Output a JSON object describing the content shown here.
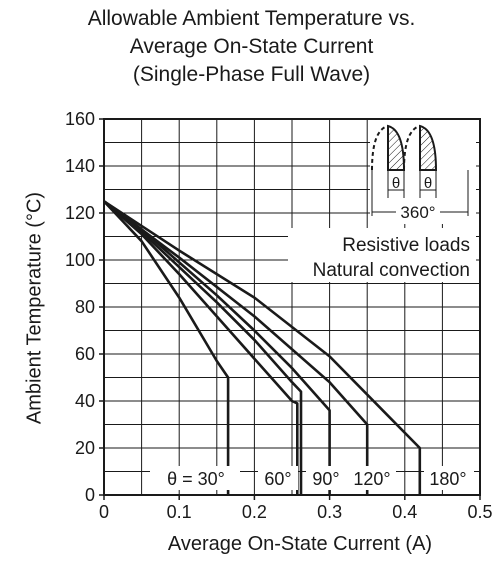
{
  "chart_data": {
    "type": "line",
    "title_lines": [
      "Allowable Ambient Temperature vs.",
      "Average On-State Current",
      "(Single-Phase Full Wave)"
    ],
    "xlabel": "Average On-State Current  (A)",
    "ylabel": "Ambient Temperature  (°C)",
    "xlim": [
      0,
      0.5
    ],
    "ylim": [
      0,
      160
    ],
    "xticks": [
      0,
      0.1,
      0.2,
      0.3,
      0.4,
      0.5
    ],
    "xtick_labels": [
      "0",
      "0.1",
      "0.2",
      "0.3",
      "0.4",
      "0.5"
    ],
    "yticks": [
      0,
      20,
      40,
      60,
      80,
      100,
      120,
      140,
      160
    ],
    "ytick_labels": [
      "0",
      "20",
      "40",
      "60",
      "80",
      "100",
      "120",
      "140",
      "160"
    ],
    "grid": true,
    "series": [
      {
        "name": "θ = 30°",
        "x": [
          0,
          0.05,
          0.1,
          0.15,
          0.165,
          0.165
        ],
        "y": [
          125,
          108,
          84,
          57,
          50,
          0
        ]
      },
      {
        "name": "60°",
        "x": [
          0,
          0.05,
          0.1,
          0.15,
          0.2,
          0.25,
          0.257,
          0.257
        ],
        "y": [
          125,
          111,
          94,
          76,
          58,
          40,
          39,
          0
        ]
      },
      {
        "name": "90°",
        "x": [
          0,
          0.05,
          0.1,
          0.15,
          0.2,
          0.25,
          0.262,
          0.262
        ],
        "y": [
          125,
          112,
          97,
          82,
          66,
          48,
          44,
          0
        ]
      },
      {
        "name": "120°",
        "x": [
          0,
          0.05,
          0.1,
          0.15,
          0.2,
          0.25,
          0.3,
          0.3
        ],
        "y": [
          125,
          113,
          99,
          85,
          70,
          54,
          36,
          0
        ]
      },
      {
        "name": "180°",
        "x": [
          0,
          0.1,
          0.2,
          0.3,
          0.35,
          0.35
        ],
        "y": [
          125,
          101,
          76,
          48,
          30,
          0
        ]
      },
      {
        "name": "",
        "x": [
          0,
          0.1,
          0.2,
          0.3,
          0.42,
          0.42
        ],
        "y": [
          125,
          104,
          84,
          59,
          20,
          0
        ]
      }
    ],
    "curve_labels": [
      "θ = 30°",
      "60°",
      "90°",
      "120°",
      "180°"
    ],
    "annotation_lines": [
      "Resistive loads",
      "Natural convection"
    ],
    "inset": {
      "theta_label": "θ",
      "period_label": "360°"
    }
  }
}
